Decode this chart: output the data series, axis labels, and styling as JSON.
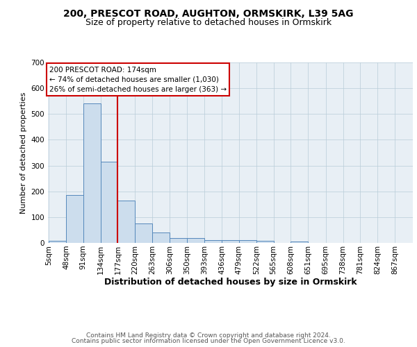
{
  "title1": "200, PRESCOT ROAD, AUGHTON, ORMSKIRK, L39 5AG",
  "title2": "Size of property relative to detached houses in Ormskirk",
  "xlabel": "Distribution of detached houses by size in Ormskirk",
  "ylabel": "Number of detached properties",
  "bin_labels": [
    "5sqm",
    "48sqm",
    "91sqm",
    "134sqm",
    "177sqm",
    "220sqm",
    "263sqm",
    "306sqm",
    "350sqm",
    "393sqm",
    "436sqm",
    "479sqm",
    "522sqm",
    "565sqm",
    "608sqm",
    "651sqm",
    "695sqm",
    "738sqm",
    "781sqm",
    "824sqm",
    "867sqm"
  ],
  "bin_edges": [
    5,
    48,
    91,
    134,
    177,
    220,
    263,
    306,
    350,
    393,
    436,
    479,
    522,
    565,
    608,
    651,
    695,
    738,
    781,
    824,
    867
  ],
  "bar_heights": [
    8,
    187,
    540,
    315,
    165,
    75,
    40,
    18,
    18,
    11,
    11,
    11,
    8,
    0,
    5,
    0,
    0,
    0,
    0,
    0,
    0
  ],
  "bar_color": "#ccdded",
  "bar_edge_color": "#5588bb",
  "vline_x": 177,
  "vline_color": "#cc0000",
  "annotation_line1": "200 PRESCOT ROAD: 174sqm",
  "annotation_line2": "← 74% of detached houses are smaller (1,030)",
  "annotation_line3": "26% of semi-detached houses are larger (363) →",
  "box_edge_color": "#cc0000",
  "ylim": [
    0,
    700
  ],
  "yticks": [
    0,
    100,
    200,
    300,
    400,
    500,
    600,
    700
  ],
  "footer1": "Contains HM Land Registry data © Crown copyright and database right 2024.",
  "footer2": "Contains public sector information licensed under the Open Government Licence v3.0.",
  "title1_fontsize": 10,
  "title2_fontsize": 9,
  "xlabel_fontsize": 9,
  "ylabel_fontsize": 8,
  "tick_fontsize": 7.5,
  "annotation_fontsize": 7.5,
  "footer_fontsize": 6.5
}
